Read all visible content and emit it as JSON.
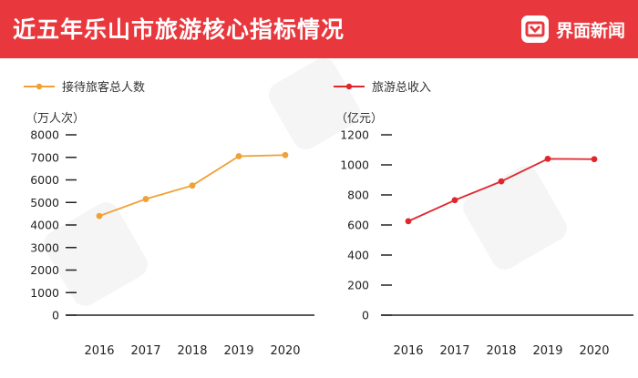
{
  "header": {
    "title": "近五年乐山市旅游核心指标情况",
    "brand": "界面新闻",
    "background_color": "#e8383d"
  },
  "chart_data": [
    {
      "type": "line",
      "series": [
        {
          "name": "接待旅客总人数",
          "color": "#f0a034",
          "values": [
            4400,
            5150,
            5750,
            7050,
            7100
          ]
        }
      ],
      "x": [
        "2016",
        "2017",
        "2018",
        "2019",
        "2020"
      ],
      "ylabel": "（万人次）",
      "ylim": [
        0,
        8000
      ],
      "yticks": [
        "0",
        "1000",
        "2000",
        "3000",
        "4000",
        "5000",
        "6000",
        "7000",
        "8000"
      ],
      "legend_position": "top-left",
      "grid": false
    },
    {
      "type": "line",
      "series": [
        {
          "name": "旅游总收入",
          "color": "#e0262d",
          "values": [
            625,
            765,
            890,
            1040,
            1038
          ]
        }
      ],
      "x": [
        "2016",
        "2017",
        "2018",
        "2019",
        "2020"
      ],
      "ylabel": "（亿元）",
      "ylim": [
        0,
        1200
      ],
      "yticks": [
        "0",
        "200",
        "400",
        "600",
        "800",
        "1000",
        "1200"
      ],
      "legend_position": "top-left",
      "grid": false
    }
  ]
}
